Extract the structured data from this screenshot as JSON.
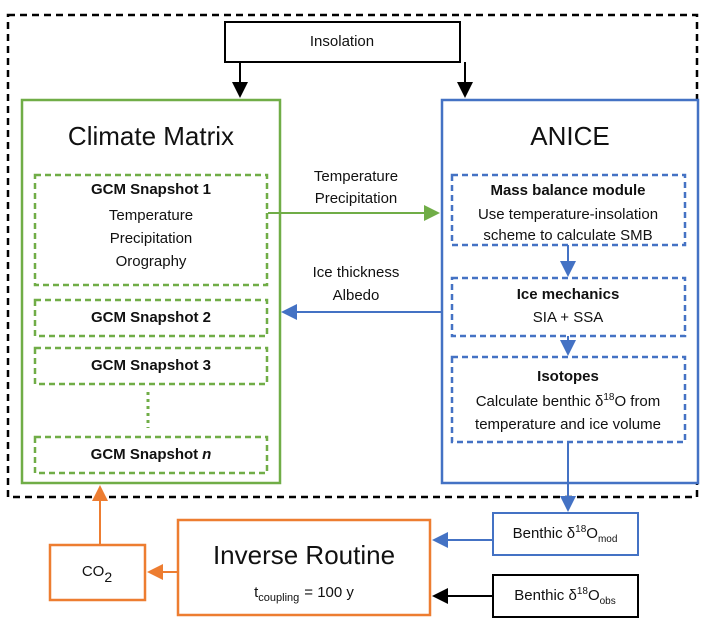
{
  "insolation": "Insolation",
  "climate_matrix": {
    "title": "Climate Matrix",
    "snapshots": [
      {
        "title": "GCM Snapshot 1",
        "lines": [
          "Temperature",
          "Precipitation",
          "Orography"
        ]
      },
      {
        "title": "GCM Snapshot 2"
      },
      {
        "title": "GCM Snapshot 3"
      },
      {
        "title": "GCM Snapshot",
        "title_italic": "n"
      }
    ]
  },
  "anice": {
    "title": "ANICE",
    "modules": [
      {
        "title": "Mass balance module",
        "lines": [
          "Use temperature-insolation",
          "scheme to calculate SMB"
        ]
      },
      {
        "title": "Ice mechanics",
        "lines": [
          "SIA + SSA"
        ]
      },
      {
        "title": "Isotopes",
        "lines": [
          [
            "Calculate benthic δ",
            "18",
            "O from"
          ],
          "temperature and ice volume"
        ]
      }
    ]
  },
  "arrow_labels": {
    "to_anice": [
      "Temperature",
      "Precipitation"
    ],
    "to_climate": [
      "Ice thickness",
      "Albedo"
    ]
  },
  "benthic_mod": [
    "Benthic δ",
    "18",
    "O",
    "mod"
  ],
  "benthic_obs": [
    "Benthic δ",
    "18",
    "O",
    "obs"
  ],
  "inverse_routine": {
    "title": "Inverse Routine",
    "coupling": [
      "t",
      "coupling",
      "= 100 y"
    ]
  },
  "co2": [
    "CO",
    "2"
  ]
}
